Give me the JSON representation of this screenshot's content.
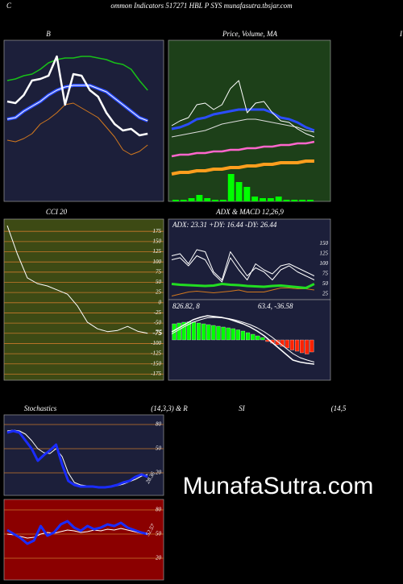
{
  "header": {
    "letter": "C",
    "title": "ommon  Indicators 517271 HBL  P SYS munafasutra.tbsjar.com",
    "edge": "I"
  },
  "watermark": "MunafaSutra.com",
  "chart_data": [
    {
      "type": "line",
      "title": "B",
      "background": "#1c1f3a",
      "ylim": [
        0,
        100
      ],
      "series": [
        {
          "color": "#18c018",
          "width": 1.5,
          "values": [
            75,
            76,
            78,
            79,
            82,
            86,
            88,
            89,
            89,
            90,
            90,
            89,
            88,
            86,
            85,
            82,
            75,
            69
          ]
        },
        {
          "color": "#2b4dff",
          "width": 4,
          "values": [
            51,
            52,
            56,
            59,
            62,
            66,
            69,
            71,
            72,
            72,
            72,
            70,
            68,
            64,
            60,
            56,
            52,
            50
          ]
        },
        {
          "color": "#ffffff",
          "width": 1,
          "values": [
            51,
            52,
            56,
            59,
            62,
            66,
            69,
            71,
            72,
            72,
            72,
            70,
            68,
            64,
            60,
            56,
            52,
            50
          ]
        },
        {
          "color": "#d2781e",
          "width": 1,
          "values": [
            38,
            37,
            39,
            42,
            48,
            51,
            55,
            60,
            61,
            58,
            55,
            52,
            46,
            40,
            32,
            29,
            31,
            35
          ]
        },
        {
          "color": "#ffffff",
          "width": 2.5,
          "values": [
            62,
            61,
            66,
            75,
            76,
            78,
            90,
            60,
            79,
            78,
            69,
            65,
            55,
            48,
            44,
            45,
            41,
            42
          ]
        }
      ]
    },
    {
      "type": "line",
      "title": "Price,  Volume,  MA",
      "background": "#1d4019",
      "ylim": [
        0,
        100
      ],
      "bars": {
        "color": "#00ff00",
        "values": [
          1,
          1,
          2,
          4,
          2,
          1,
          1,
          17,
          12,
          9,
          3,
          2,
          2,
          3,
          1,
          1,
          1,
          1
        ]
      },
      "series": [
        {
          "color": "#ff9e1e",
          "width": 4,
          "values": [
            17,
            18,
            18,
            19,
            19,
            20,
            20,
            21,
            21,
            22,
            22,
            23,
            23,
            24,
            24,
            24,
            25,
            25
          ]
        },
        {
          "color": "#ff66cc",
          "width": 2.5,
          "values": [
            28,
            29,
            29,
            30,
            30,
            31,
            31,
            32,
            32,
            33,
            33,
            34,
            34,
            35,
            35,
            36,
            36,
            37
          ]
        },
        {
          "color": "#dddddd",
          "width": 1,
          "values": [
            40,
            41,
            42,
            43,
            44,
            46,
            48,
            49,
            50,
            51,
            51,
            50,
            49,
            48,
            47,
            46,
            44,
            43
          ]
        },
        {
          "color": "#2b4dff",
          "width": 3,
          "values": [
            45,
            46,
            48,
            51,
            52,
            54,
            55,
            56,
            57,
            57,
            57,
            57,
            55,
            52,
            51,
            49,
            46,
            44
          ]
        },
        {
          "color": "#ffffff",
          "width": 1,
          "values": [
            47,
            50,
            52,
            60,
            61,
            57,
            60,
            70,
            75,
            55,
            61,
            62,
            55,
            50,
            49,
            45,
            42,
            40
          ]
        }
      ]
    },
    {
      "type": "line",
      "title": "CCI 20",
      "background": "#3d4a14",
      "grid": true,
      "grid_color": "#c8782a",
      "ylim": [
        -190,
        205
      ],
      "yticks": [
        175,
        150,
        125,
        100,
        75,
        50,
        25,
        0,
        -25,
        -50,
        -75,
        -100,
        -125,
        -150,
        -175
      ],
      "series": [
        {
          "color": "#ffffff",
          "width": 1,
          "values": [
            189,
            120,
            61,
            47,
            41,
            31,
            21,
            -8,
            -48,
            -64,
            -71,
            -68,
            -58,
            -70,
            -75
          ]
        }
      ]
    },
    {
      "type": "line",
      "title": "ADX  & MACD 12,26,9",
      "background": "#1c1f3a",
      "ylim": [
        11,
        211
      ],
      "yticks": [
        150,
        125,
        100,
        75,
        50,
        25
      ],
      "annotation": "ADX: 23.31  +DY: 16.44  -DY: 26.44",
      "series": [
        {
          "color": "#d2781e",
          "width": 1,
          "values": [
            20,
            25,
            30,
            32,
            30,
            28,
            30,
            32,
            35,
            30,
            30,
            30,
            35,
            40,
            40,
            38,
            38,
            35
          ]
        },
        {
          "color": "#ffffff",
          "width": 1,
          "values": [
            120,
            125,
            100,
            135,
            130,
            80,
            60,
            130,
            100,
            70,
            90,
            80,
            60,
            85,
            95,
            80,
            70,
            60
          ]
        },
        {
          "color": "#ffffff",
          "width": 1,
          "values": [
            110,
            115,
            95,
            120,
            110,
            75,
            55,
            115,
            85,
            60,
            100,
            85,
            75,
            95,
            100,
            90,
            80,
            70
          ]
        },
        {
          "color": "#22dd22",
          "width": 3,
          "values": [
            50,
            48,
            47,
            46,
            45,
            46,
            50,
            48,
            47,
            45,
            44,
            43,
            45,
            46,
            44,
            42,
            40,
            50
          ]
        }
      ]
    },
    {
      "type": "line",
      "background": "#1c1f3a",
      "ylim": [
        -100,
        100
      ],
      "annotations": [
        "826.82,  8",
        "63.4,  -36.58"
      ],
      "bars": {
        "colors": [
          "#00ff00",
          "#ff2200"
        ],
        "values": [
          40,
          42,
          44,
          45,
          44,
          42,
          40,
          38,
          36,
          34,
          32,
          30,
          28,
          25,
          22,
          18,
          14,
          10,
          6,
          -4,
          -8,
          -12,
          -16,
          -20,
          -25,
          -28,
          -32,
          -35,
          -30
        ]
      },
      "series": [
        {
          "color": "#ffffff",
          "width": 1.5,
          "values": [
            20,
            30,
            40,
            50,
            56,
            60,
            58,
            56,
            52,
            46,
            40,
            32,
            22,
            10,
            -5,
            -20,
            -35,
            -50,
            -55,
            -58,
            -60
          ]
        },
        {
          "color": "#ffffff",
          "width": 1,
          "values": [
            15,
            25,
            35,
            44,
            50,
            55,
            56,
            55,
            53,
            49,
            44,
            38,
            30,
            20,
            8,
            -6,
            -20,
            -34,
            -44,
            -50,
            -55
          ]
        }
      ]
    },
    {
      "type": "line",
      "title": "Stochastics",
      "subtitle": "(14,3,3) & R",
      "background": "#1c1f3a",
      "grid": true,
      "grid_color": "#c8782a",
      "ylim": [
        -8,
        92
      ],
      "yticks": [
        80,
        50,
        20
      ],
      "annotation": "28.36",
      "series": [
        {
          "color": "#ffffff",
          "width": 1,
          "values": [
            72,
            73,
            72,
            68,
            60,
            50,
            45,
            44,
            50,
            40,
            20,
            8,
            5,
            4,
            3,
            3,
            3,
            3,
            4,
            6,
            9,
            12,
            16,
            18
          ]
        },
        {
          "color": "#1a2cff",
          "width": 3,
          "values": [
            70,
            72,
            70,
            60,
            50,
            35,
            42,
            48,
            55,
            30,
            10,
            5,
            3,
            3,
            3,
            2,
            2,
            3,
            5,
            8,
            10,
            15,
            18,
            15
          ]
        }
      ]
    },
    {
      "type": "line",
      "title": "SI",
      "subtitle": "(14,5",
      "background": "#8b0000",
      "grid": true,
      "grid_color": "#c8782a",
      "ylim": [
        -7,
        93
      ],
      "yticks": [
        80,
        50,
        20
      ],
      "annotation": "52.57",
      "series": [
        {
          "color": "#ffffff",
          "width": 1,
          "values": [
            50,
            49,
            47,
            45,
            46,
            50,
            52,
            51,
            53,
            55,
            54,
            52,
            53,
            55,
            54,
            56,
            55,
            57,
            55,
            53,
            51,
            50
          ]
        },
        {
          "color": "#1a2cff",
          "width": 3,
          "values": [
            55,
            50,
            45,
            38,
            42,
            60,
            48,
            52,
            62,
            66,
            58,
            54,
            60,
            56,
            58,
            62,
            60,
            64,
            58,
            55,
            52,
            50
          ]
        }
      ]
    }
  ]
}
